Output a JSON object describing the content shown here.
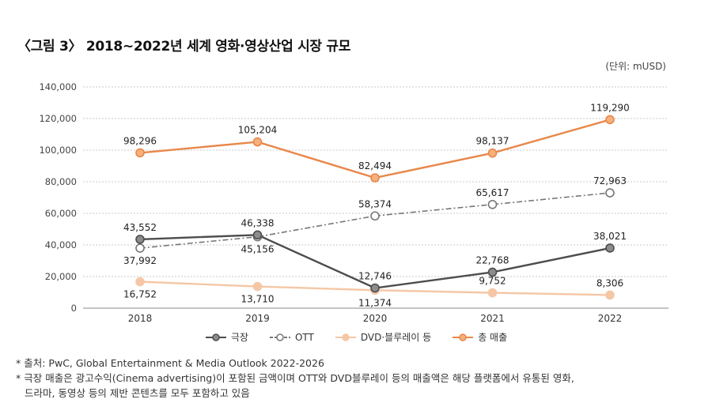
{
  "header": {
    "title": "〈그림 3〉 2018~2022년 세계 영화·영상산업 시장 규모",
    "unit": "(단위: mUSD)"
  },
  "chart_data": {
    "type": "line",
    "categories": [
      "2018",
      "2019",
      "2020",
      "2021",
      "2022"
    ],
    "ylim": [
      0,
      140000
    ],
    "yticks": [
      "0",
      "20,000",
      "40,000",
      "60,000",
      "80,000",
      "100,000",
      "120,000",
      "140,000"
    ],
    "ytick_values": [
      0,
      20000,
      40000,
      60000,
      80000,
      100000,
      120000,
      140000
    ],
    "grid": true,
    "legend_position": "bottom",
    "series": [
      {
        "name": "극장",
        "values": [
          43552,
          46338,
          12746,
          22768,
          38021
        ],
        "labels": [
          "43,552",
          "46,338",
          "12,746",
          "22,768",
          "38,021"
        ],
        "label_side": [
          "above",
          "above",
          "above",
          "above",
          "above"
        ],
        "color": "#4d4d4d",
        "marker_fill": "#8c8c8c",
        "dash": "solid"
      },
      {
        "name": "OTT",
        "values": [
          37992,
          45156,
          58374,
          65617,
          72963
        ],
        "labels": [
          "37,992",
          "45,156",
          "58,374",
          "65,617",
          "72,963"
        ],
        "label_side": [
          "below",
          "below",
          "above",
          "above",
          "above"
        ],
        "color": "#777777",
        "marker_fill": "#ffffff",
        "dash": "dashdot"
      },
      {
        "name": "DVD·블루레이 등",
        "values": [
          16752,
          13710,
          11374,
          9752,
          8306
        ],
        "labels": [
          "16,752",
          "13,710",
          "11,374",
          "9,752",
          "8,306"
        ],
        "label_side": [
          "below",
          "below",
          "below",
          "above",
          "above"
        ],
        "color": "#f5c7a6",
        "marker_fill": "#f5c7a6",
        "dash": "solid"
      },
      {
        "name": "총 매출",
        "values": [
          98296,
          105204,
          82494,
          98137,
          119290
        ],
        "labels": [
          "98,296",
          "105,204",
          "82,494",
          "98,137",
          "119,290"
        ],
        "label_side": [
          "above",
          "above",
          "above",
          "above",
          "above"
        ],
        "color": "#e8874a",
        "marker_fill": "#f7b07c",
        "dash": "solid"
      }
    ]
  },
  "notes": [
    {
      "mark": "*",
      "lines": [
        "출처: PwC, Global Entertainment & Media Outlook 2022-2026"
      ]
    },
    {
      "mark": "*",
      "lines": [
        "극장 매출은 광고수익(Cinema advertising)이 포함된 금액이며 OTT와 DVD블루레이 등의 매출액은 해당 플랫폼에서 유통된 영화,",
        "드라마, 동영상 등의 제반 콘텐츠를 모두 포함하고 있음"
      ]
    }
  ]
}
